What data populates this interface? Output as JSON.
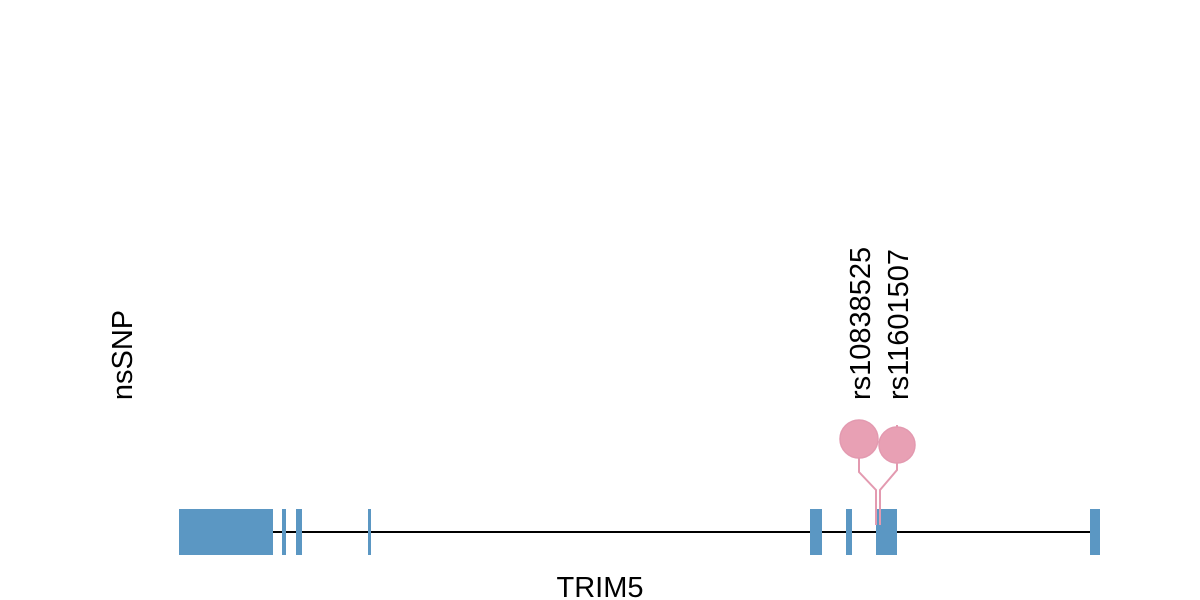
{
  "track_label": "nsSNP",
  "gene": {
    "label": "TRIM5"
  },
  "snps": [
    {
      "label": "rs10838525"
    },
    {
      "label": "rs11601507"
    }
  ]
}
